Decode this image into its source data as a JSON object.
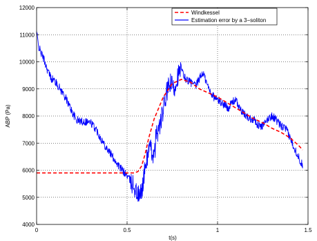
{
  "chart_data": {
    "type": "line",
    "title": "",
    "xlabel": "t(s)",
    "ylabel": "ABP (Pa)",
    "xlim": [
      0,
      1.5
    ],
    "ylim": [
      4000,
      12000
    ],
    "xticks": [
      0,
      0.5,
      1,
      1.5
    ],
    "xtick_labels": [
      "0",
      "0.5",
      "1",
      "1.5"
    ],
    "yticks": [
      4000,
      5000,
      6000,
      7000,
      8000,
      9000,
      10000,
      11000,
      12000
    ],
    "ytick_labels": [
      "4000",
      "5000",
      "6000",
      "7000",
      "8000",
      "9000",
      "10000",
      "11000",
      "12000"
    ],
    "grid": true,
    "legend_position": "top-right",
    "series": [
      {
        "name": "Windkessel",
        "color": "#ff0000",
        "style": "dashed",
        "x": [
          0,
          0.1,
          0.2,
          0.3,
          0.4,
          0.5,
          0.54,
          0.56,
          0.58,
          0.6,
          0.62,
          0.65,
          0.7,
          0.75,
          0.8,
          0.85,
          0.9,
          0.95,
          1.0,
          1.05,
          1.1,
          1.15,
          1.2,
          1.25,
          1.3,
          1.35,
          1.4,
          1.45,
          1.47
        ],
        "y": [
          5900,
          5900,
          5900,
          5900,
          5900,
          5900,
          5900,
          5950,
          6150,
          6600,
          7200,
          7900,
          8700,
          9200,
          9350,
          9250,
          9000,
          8850,
          8700,
          8500,
          8300,
          8100,
          7900,
          7750,
          7550,
          7400,
          7200,
          6900,
          6750
        ]
      },
      {
        "name": "Estimation error by a 3−soliton",
        "color": "#0000ff",
        "style": "solid",
        "noise": 150,
        "x": [
          0,
          0.01,
          0.02,
          0.04,
          0.06,
          0.08,
          0.1,
          0.12,
          0.15,
          0.18,
          0.2,
          0.22,
          0.25,
          0.28,
          0.3,
          0.33,
          0.36,
          0.4,
          0.43,
          0.46,
          0.5,
          0.52,
          0.54,
          0.55,
          0.56,
          0.57,
          0.58,
          0.59,
          0.6,
          0.62,
          0.64,
          0.65,
          0.66,
          0.68,
          0.7,
          0.72,
          0.74,
          0.76,
          0.78,
          0.8,
          0.82,
          0.84,
          0.86,
          0.88,
          0.9,
          0.92,
          0.94,
          0.96,
          0.98,
          1.0,
          1.02,
          1.04,
          1.06,
          1.08,
          1.1,
          1.12,
          1.14,
          1.16,
          1.18,
          1.2,
          1.22,
          1.24,
          1.26,
          1.28,
          1.3,
          1.32,
          1.34,
          1.36,
          1.38,
          1.4,
          1.42,
          1.44,
          1.46,
          1.47
        ],
        "y": [
          11100,
          10600,
          10400,
          10100,
          9700,
          9400,
          9300,
          9100,
          8800,
          8400,
          8100,
          7850,
          7800,
          7800,
          7750,
          7500,
          7100,
          6700,
          6400,
          6100,
          5800,
          5600,
          5400,
          5200,
          5100,
          5000,
          5250,
          5600,
          6100,
          6800,
          6700,
          6400,
          7300,
          7600,
          8200,
          8900,
          9200,
          9000,
          9500,
          9700,
          9400,
          9300,
          9200,
          9100,
          9400,
          9600,
          9200,
          8900,
          8700,
          8600,
          8500,
          8400,
          8300,
          8500,
          8600,
          8300,
          8100,
          8000,
          7900,
          7900,
          7700,
          7600,
          7700,
          7900,
          8000,
          7900,
          7700,
          7600,
          7500,
          7200,
          6900,
          6600,
          6300,
          6200
        ]
      }
    ]
  }
}
